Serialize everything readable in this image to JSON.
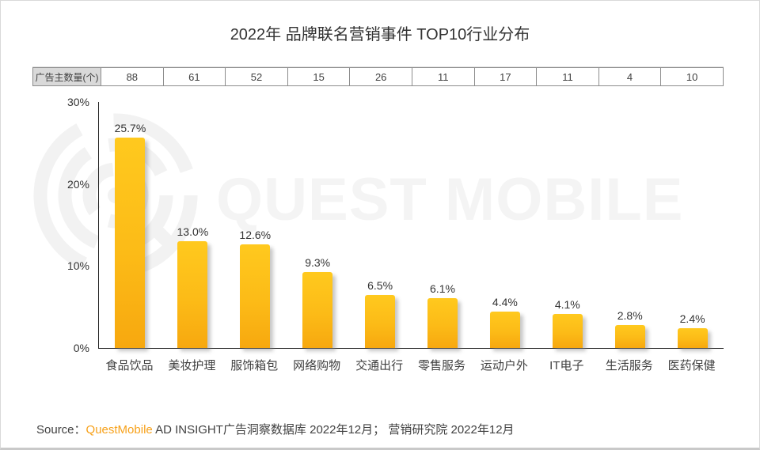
{
  "page": {
    "title": "2022年 品牌联名营销事件 TOP10行业分布",
    "watermark_text": "QUEST MOBILE",
    "watermark_logo_icon": "questmobile-rings-logo",
    "source": {
      "prefix": "Source：",
      "brand": "QuestMobile",
      "suffix": " AD INSIGHT广告洞察数据库 2022年12月； 营销研究院 2022年12月"
    }
  },
  "advertiser_table": {
    "header": "广告主数量(个)",
    "values": [
      "88",
      "61",
      "52",
      "15",
      "26",
      "11",
      "17",
      "11",
      "4",
      "10"
    ]
  },
  "chart_data": {
    "type": "bar",
    "title": "2022年 品牌联名营销事件 TOP10行业分布",
    "categories": [
      "食品饮品",
      "美妆护理",
      "服饰箱包",
      "网络购物",
      "交通出行",
      "零售服务",
      "运动户外",
      "IT电子",
      "生活服务",
      "医药保健"
    ],
    "values": [
      25.7,
      13.0,
      12.6,
      9.3,
      6.5,
      6.1,
      4.4,
      4.1,
      2.8,
      2.4
    ],
    "value_labels": [
      "25.7%",
      "13.0%",
      "12.6%",
      "9.3%",
      "6.5%",
      "6.1%",
      "4.4%",
      "4.1%",
      "2.8%",
      "2.4%"
    ],
    "advertiser_counts": [
      88,
      61,
      52,
      15,
      26,
      11,
      17,
      11,
      4,
      10
    ],
    "y_ticks": [
      "30%",
      "20%",
      "10%",
      "0%"
    ],
    "ylim": [
      0,
      30
    ],
    "grid": false,
    "legend": "none",
    "bar_color_top": "#FFC91E",
    "bar_color_bottom": "#F7A80F",
    "axis_color": "#262626"
  }
}
